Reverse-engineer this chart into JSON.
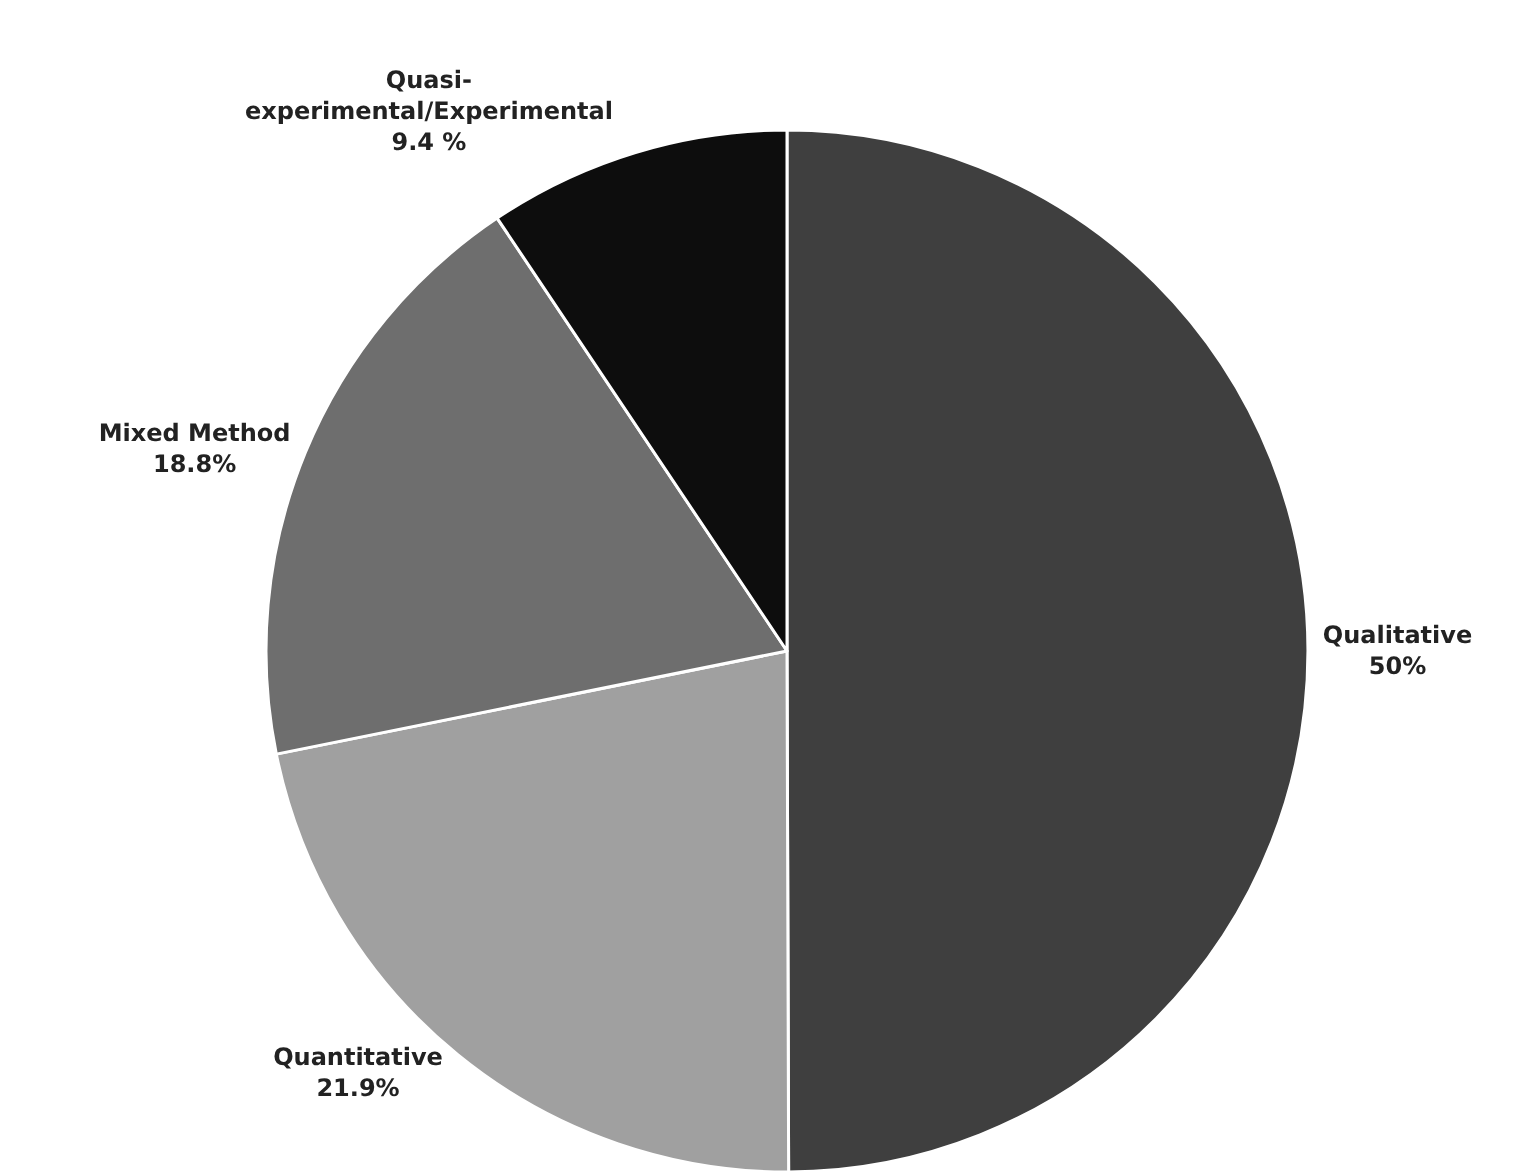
{
  "chart_data": {
    "type": "pie",
    "categories": [
      "Qualitative",
      "Quantitative",
      "Mixed Method",
      "Quasi-experimental/Experimental"
    ],
    "values": [
      50,
      21.9,
      18.8,
      9.4
    ],
    "value_labels": [
      "50%",
      "21.9%",
      "18.8%",
      "9.4 %"
    ],
    "colors": [
      "#3f3f3f",
      "#a0a0a0",
      "#6e6e6e",
      "#0d0d0d"
    ],
    "legend": false
  }
}
